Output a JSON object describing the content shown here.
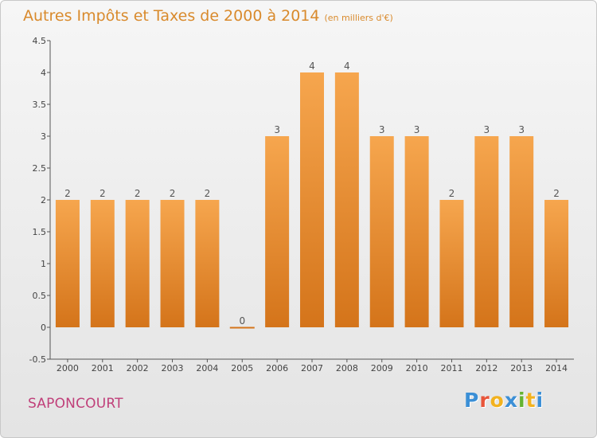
{
  "header": {
    "title": "Autres Impôts et Taxes de 2000 à 2014",
    "unit": "(en milliers d'€)"
  },
  "footer": {
    "commune": "SAPONCOURT",
    "brand": "Proxiti"
  },
  "colors": {
    "bar_light": "#f6a64e",
    "bar_dark": "#d4741a",
    "title": "#d98a2c",
    "commune": "#c0407a",
    "brand_letters": [
      "#3b8fd6",
      "#e8553a",
      "#f2b21f",
      "#3b8fd6",
      "#64b331",
      "#f2b21f",
      "#3b8fd6"
    ]
  },
  "chart_data": {
    "type": "bar",
    "title": "Autres Impôts et Taxes de 2000 à 2014",
    "ylabel": "",
    "xlabel": "",
    "categories": [
      "2000",
      "2001",
      "2002",
      "2003",
      "2004",
      "2005",
      "2006",
      "2007",
      "2008",
      "2009",
      "2010",
      "2011",
      "2012",
      "2013",
      "2014"
    ],
    "values": [
      2,
      2,
      2,
      2,
      2,
      0,
      3,
      4,
      4,
      3,
      3,
      2,
      3,
      3,
      2
    ],
    "data_labels": [
      "2",
      "2",
      "2",
      "2",
      "2",
      "0",
      "3",
      "4",
      "4",
      "3",
      "3",
      "2",
      "3",
      "3",
      "2"
    ],
    "ylim": [
      -0.5,
      4.5
    ],
    "yticks": [
      -0.5,
      0,
      0.5,
      1,
      1.5,
      2,
      2.5,
      3,
      3.5,
      4,
      4.5
    ],
    "ytick_labels": [
      "-0.5",
      "0",
      "0.5",
      "1",
      "1.5",
      "2",
      "2.5",
      "3",
      "3.5",
      "4",
      "4.5"
    ],
    "grid": false,
    "legend": "none"
  }
}
